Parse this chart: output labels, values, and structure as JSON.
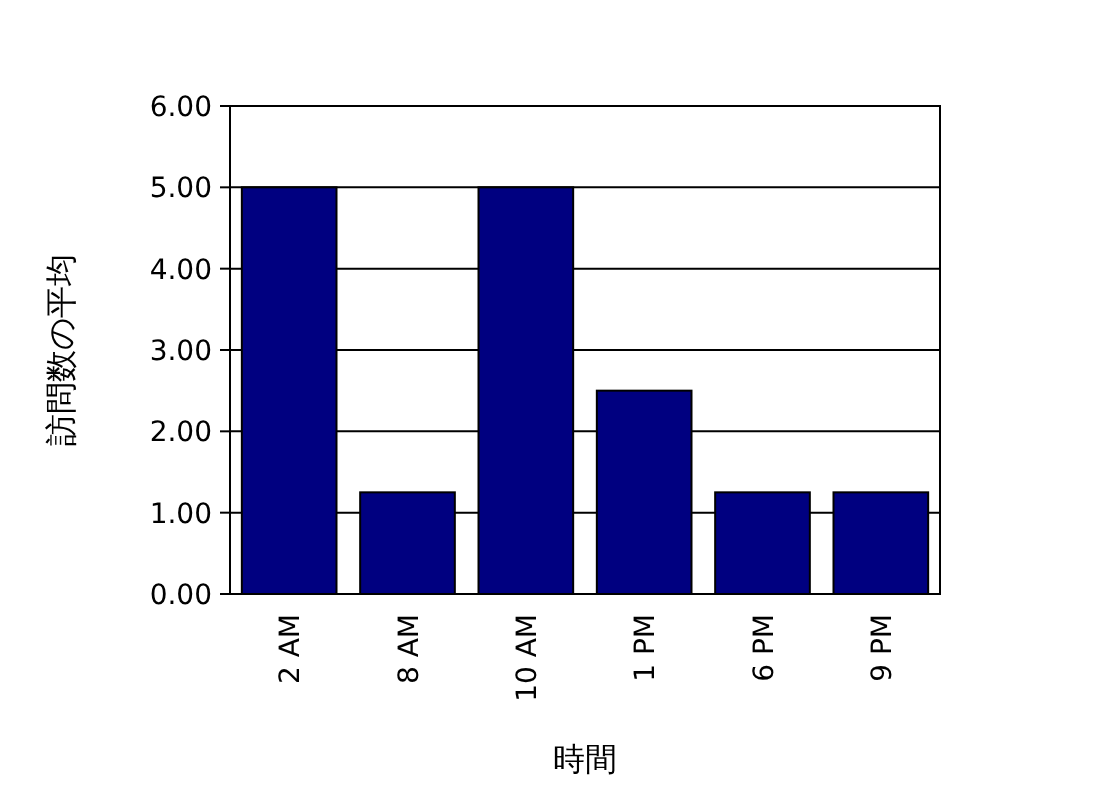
{
  "chart_data": {
    "type": "bar",
    "xlabel": "時間",
    "ylabel": "訪問数の平均",
    "categories": [
      "2 AM",
      "8 AM",
      "10 AM",
      "1 PM",
      "6 PM",
      "9 PM"
    ],
    "values": [
      5,
      1.25,
      5,
      2.5,
      1.25,
      1.25
    ],
    "color": "#000080",
    "ylim": [
      0,
      6
    ],
    "yticks": [
      {
        "value": 0,
        "label": "0.00"
      },
      {
        "value": 1,
        "label": "1.00"
      },
      {
        "value": 2,
        "label": "2.00"
      },
      {
        "value": 3,
        "label": "3.00"
      },
      {
        "value": 4,
        "label": "4.00"
      },
      {
        "value": 5,
        "label": "5.00"
      },
      {
        "value": 6,
        "label": "6.00"
      }
    ],
    "grid": "y"
  }
}
